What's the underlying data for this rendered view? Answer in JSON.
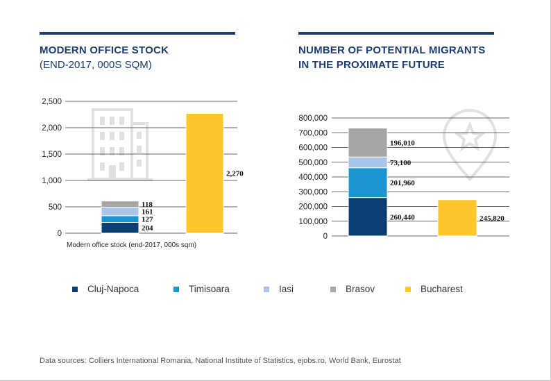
{
  "colors": {
    "Cluj-Napoca": "#0b3e73",
    "Timisoara": "#1a95cf",
    "Iasi": "#a8c4e6",
    "Brasov": "#a6a6a6",
    "Bucharest": "#fdc52e",
    "title": "#1c3d6e",
    "grid": "#333333",
    "icon": "#e1e1e1"
  },
  "legend": [
    {
      "label": "Cluj-Napoca",
      "color": "#0b3e73"
    },
    {
      "label": "Timisoara",
      "color": "#1a95cf"
    },
    {
      "label": "Iasi",
      "color": "#a8c4e6"
    },
    {
      "label": "Brasov",
      "color": "#a6a6a6"
    },
    {
      "label": "Bucharest",
      "color": "#fdc52e"
    }
  ],
  "left_chart": {
    "title": "MODERN OFFICE STOCK",
    "subtitle": "(END-2017, 000S SQM)"
  },
  "right_chart": {
    "title": "NUMBER OF POTENTIAL MIGRANTS\nIN THE PROXIMATE FUTURE"
  },
  "source": "Data sources: Colliers International Romania, National Institute of Statistics, ejobs.ro, World Bank, Eurostat",
  "chart_data": [
    {
      "type": "bar",
      "stacked": true,
      "title": "MODERN OFFICE STOCK",
      "subtitle": "(END-2017, 000S SQM)",
      "xlabel": "Modern office stock (end-2017, 000s sqm)",
      "ylabel": "",
      "ylim": [
        0,
        2500
      ],
      "yticks": [
        0,
        500,
        1000,
        1500,
        2000,
        2500
      ],
      "ytick_labels": [
        "0",
        "500",
        "1,000",
        "1,500",
        "2,000",
        "2,500"
      ],
      "grid": true,
      "series": [
        {
          "name": "Cluj-Napoca",
          "bar": 0,
          "value": 204,
          "label": "204"
        },
        {
          "name": "Timisoara",
          "bar": 0,
          "value": 127,
          "label": "127"
        },
        {
          "name": "Iasi",
          "bar": 0,
          "value": 161,
          "label": "161"
        },
        {
          "name": "Brasov",
          "bar": 0,
          "value": 118,
          "label": "118"
        },
        {
          "name": "Bucharest",
          "bar": 1,
          "value": 2270,
          "label": "2,270"
        }
      ]
    },
    {
      "type": "bar",
      "stacked": true,
      "title": "NUMBER OF POTENTIAL MIGRANTS IN THE PROXIMATE FUTURE",
      "xlabel": "",
      "ylabel": "",
      "ylim": [
        0,
        800000
      ],
      "yticks": [
        0,
        100000,
        200000,
        300000,
        400000,
        500000,
        600000,
        700000,
        800000
      ],
      "ytick_labels": [
        "0",
        "100,000",
        "200,000",
        "300,000",
        "400,000",
        "500,000",
        "600,000",
        "700,000",
        "800,000"
      ],
      "grid": true,
      "series": [
        {
          "name": "Cluj-Napoca",
          "bar": 0,
          "value": 260440,
          "label": "260,440"
        },
        {
          "name": "Timisoara",
          "bar": 0,
          "value": 201960,
          "label": "201,960"
        },
        {
          "name": "Iasi",
          "bar": 0,
          "value": 73100,
          "label": "73,100"
        },
        {
          "name": "Brasov",
          "bar": 0,
          "value": 196010,
          "label": "196,010"
        },
        {
          "name": "Bucharest",
          "bar": 1,
          "value": 245820,
          "label": "245,820"
        }
      ]
    }
  ]
}
